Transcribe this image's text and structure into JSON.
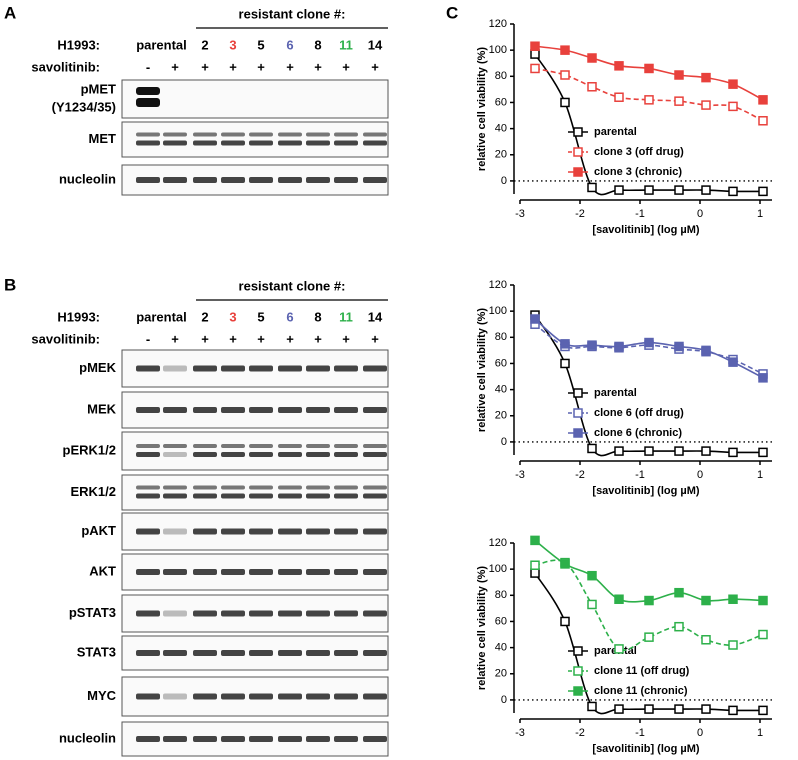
{
  "blot_panels": [
    {
      "label": "A",
      "header": "resistant clone #:",
      "cell_line": "H1993:",
      "treatment_label": "savolitinib:",
      "groups": [
        {
          "label": "parental",
          "color": "#000000"
        },
        {
          "label": "2",
          "color": "#000000"
        },
        {
          "label": "3",
          "color": "#e8413c"
        },
        {
          "label": "5",
          "color": "#000000"
        },
        {
          "label": "6",
          "color": "#5b63b0"
        },
        {
          "label": "8",
          "color": "#000000"
        },
        {
          "label": "11",
          "color": "#2db04a"
        },
        {
          "label": "14",
          "color": "#000000"
        }
      ],
      "treatments": [
        "-",
        "+",
        "+",
        "+",
        "+",
        "+",
        "+",
        "+",
        "+"
      ],
      "blots": [
        [
          "pMET",
          "(Y1234/35)"
        ],
        [
          "MET"
        ],
        [
          "nucleolin"
        ]
      ]
    },
    {
      "label": "B",
      "header": "resistant clone #:",
      "cell_line": "H1993:",
      "treatment_label": "savolitinib:",
      "groups": [
        {
          "label": "parental",
          "color": "#000000"
        },
        {
          "label": "2",
          "color": "#000000"
        },
        {
          "label": "3",
          "color": "#e8413c"
        },
        {
          "label": "5",
          "color": "#000000"
        },
        {
          "label": "6",
          "color": "#5b63b0"
        },
        {
          "label": "8",
          "color": "#000000"
        },
        {
          "label": "11",
          "color": "#2db04a"
        },
        {
          "label": "14",
          "color": "#000000"
        }
      ],
      "treatments": [
        "-",
        "+",
        "+",
        "+",
        "+",
        "+",
        "+",
        "+",
        "+"
      ],
      "blots": [
        [
          "pMEK"
        ],
        [
          "MEK"
        ],
        [
          "pERK1/2"
        ],
        [
          "ERK1/2"
        ],
        [
          "pAKT"
        ],
        [
          "AKT"
        ],
        [
          "pSTAT3"
        ],
        [
          "STAT3"
        ],
        [
          "MYC"
        ],
        [
          "nucleolin"
        ]
      ]
    }
  ],
  "chart_panel_label": "C",
  "chart_data": [
    {
      "type": "line",
      "xlabel": "[savolitinib] (log µM)",
      "ylabel": "relative cell viability (%)",
      "xlim": [
        -3,
        1.2
      ],
      "ylim": [
        -10,
        120
      ],
      "xticks": [
        -3,
        -2,
        -1,
        0,
        1
      ],
      "yticks": [
        0,
        20,
        40,
        60,
        80,
        100,
        120
      ],
      "reference_line": 0,
      "x": [
        -2.75,
        -2.25,
        -1.8,
        -1.35,
        -0.85,
        -0.35,
        0.1,
        0.55,
        1.05
      ],
      "series": [
        {
          "name": "parental",
          "color": "#000000",
          "marker": "open",
          "dashed": false,
          "values": [
            97,
            60,
            -5,
            -7,
            -7,
            -7,
            -7,
            -8,
            -8
          ]
        },
        {
          "name": "clone 3 (off drug)",
          "color": "#e8413c",
          "marker": "open",
          "dashed": true,
          "values": [
            86,
            81,
            72,
            64,
            62,
            61,
            58,
            57,
            46
          ]
        },
        {
          "name": "clone 3 (chronic)",
          "color": "#e8413c",
          "marker": "filled",
          "dashed": false,
          "values": [
            103,
            100,
            94,
            88,
            86,
            81,
            79,
            74,
            62
          ]
        }
      ]
    },
    {
      "type": "line",
      "xlabel": "[savolitinib] (log µM)",
      "ylabel": "relative cell viability (%)",
      "xlim": [
        -3,
        1.2
      ],
      "ylim": [
        -10,
        120
      ],
      "xticks": [
        -3,
        -2,
        -1,
        0,
        1
      ],
      "yticks": [
        0,
        20,
        40,
        60,
        80,
        100,
        120
      ],
      "reference_line": 0,
      "x": [
        -2.75,
        -2.25,
        -1.8,
        -1.35,
        -0.85,
        -0.35,
        0.1,
        0.55,
        1.05
      ],
      "series": [
        {
          "name": "parental",
          "color": "#000000",
          "marker": "open",
          "dashed": false,
          "values": [
            97,
            60,
            -5,
            -7,
            -7,
            -7,
            -7,
            -8,
            -8
          ]
        },
        {
          "name": "clone 6 (off drug)",
          "color": "#5b63b0",
          "marker": "open",
          "dashed": true,
          "values": [
            90,
            73,
            73,
            72,
            74,
            71,
            69,
            63,
            52
          ]
        },
        {
          "name": "clone 6 (chronic)",
          "color": "#5b63b0",
          "marker": "filled",
          "dashed": false,
          "values": [
            94,
            75,
            74,
            73,
            76,
            73,
            70,
            61,
            49
          ]
        }
      ]
    },
    {
      "type": "line",
      "xlabel": "[savolitinib] (log µM)",
      "ylabel": "relative cell viability (%)",
      "xlim": [
        -3,
        1.2
      ],
      "ylim": [
        -10,
        120
      ],
      "xticks": [
        -3,
        -2,
        -1,
        0,
        1
      ],
      "yticks": [
        0,
        20,
        40,
        60,
        80,
        100,
        120
      ],
      "reference_line": 0,
      "x": [
        -2.75,
        -2.25,
        -1.8,
        -1.35,
        -0.85,
        -0.35,
        0.1,
        0.55,
        1.05
      ],
      "series": [
        {
          "name": "parental",
          "color": "#000000",
          "marker": "open",
          "dashed": false,
          "values": [
            97,
            60,
            -5,
            -7,
            -7,
            -7,
            -7,
            -8,
            -8
          ]
        },
        {
          "name": "clone 11 (off drug)",
          "color": "#2db04a",
          "marker": "open",
          "dashed": true,
          "values": [
            103,
            105,
            73,
            39,
            48,
            56,
            46,
            42,
            50
          ]
        },
        {
          "name": "clone 11 (chronic)",
          "color": "#2db04a",
          "marker": "filled",
          "dashed": false,
          "values": [
            122,
            104,
            95,
            77,
            76,
            82,
            76,
            77,
            76
          ]
        }
      ]
    }
  ]
}
